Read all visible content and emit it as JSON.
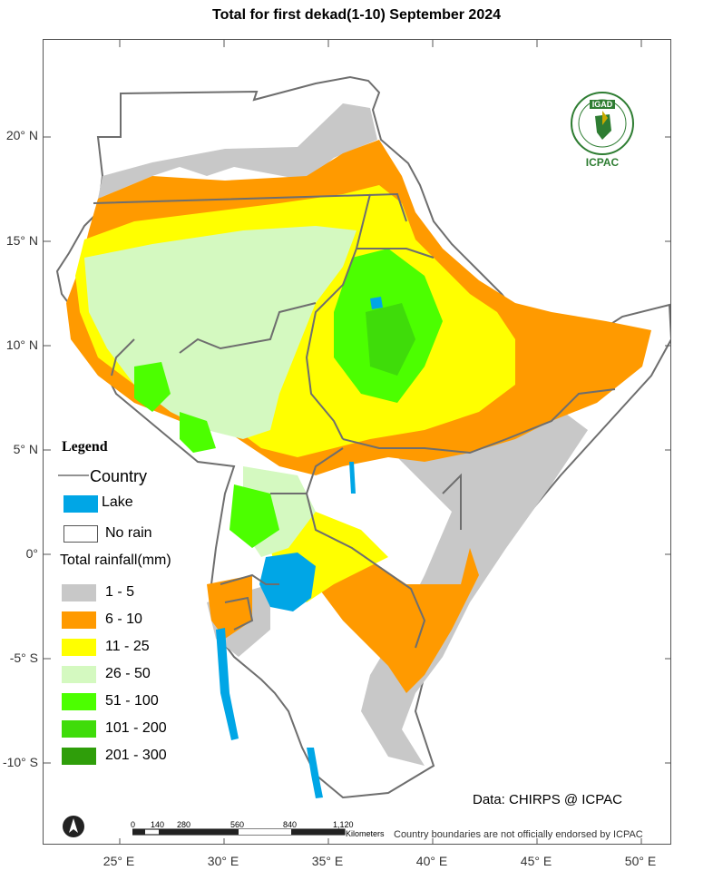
{
  "title": "Total  for first dekad(1-10) September 2024",
  "lat_ticks": [
    "20° N",
    "15° N",
    "10° N",
    "5° N",
    "0°",
    "-5° S",
    "-10° S"
  ],
  "lon_ticks": [
    "25° E",
    "30° E",
    "35° E",
    "40° E",
    "45° E",
    "50° E"
  ],
  "legend": {
    "heading": "Legend",
    "country_label": "Country",
    "lake_label": "Lake",
    "norain_label": "No rain",
    "total_label": "Total rainfall(mm)",
    "classes": [
      {
        "label": "1 - 5",
        "color": "#c8c8c8"
      },
      {
        "label": "6 - 10",
        "color": "#ff9a00"
      },
      {
        "label": "11 - 25",
        "color": "#ffff00"
      },
      {
        "label": "26 - 50",
        "color": "#d4f9c0"
      },
      {
        "label": "51 - 100",
        "color": "#4cff00"
      },
      {
        "label": "101 - 200",
        "color": "#3fdc0a"
      },
      {
        "label": "201 - 300",
        "color": "#2f9e0a"
      }
    ],
    "lake_color": "#00a6e6",
    "country_color": "#6e6e6e"
  },
  "credit": "Data: CHIRPS @ ICPAC",
  "disclaimer": "Country boundaries are not officially endorsed by ICPAC",
  "scale": {
    "ticks": [
      "0",
      "140",
      "280",
      "560",
      "840",
      "1,120"
    ],
    "unit": "Kilometers"
  },
  "logo": {
    "top_text": "IGAD",
    "bottom_text": "ICPAC"
  },
  "north_arrow": "north-arrow-icon"
}
